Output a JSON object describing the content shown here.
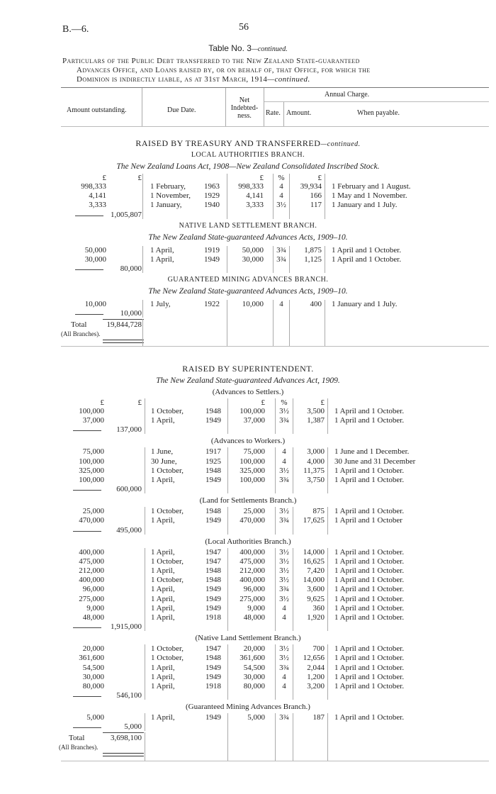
{
  "page": {
    "ref": "B.—6.",
    "number": "56",
    "table_title": "Table No. 3",
    "table_title_suffix": "—continued.",
    "particulars": [
      "Particulars of the Public Debt transferred to the New Zealand State-guaranteed",
      "Advances Office, and Loans raised by, or on behalf of, that Office, for which the",
      "Dominion is indirectly liable, as at 31st March, 1914"
    ],
    "particulars_suffix": "—continued."
  },
  "columns": {
    "amount_outstanding": "Amount outstanding.",
    "due_date": "Due Date.",
    "net_indebtedness": [
      "Net",
      "Indebted-",
      "ness."
    ],
    "annual_charge": "Annual Charge.",
    "rate": "Rate.",
    "amount": "Amount.",
    "when_payable": "When payable."
  },
  "parts": [
    {
      "items": [
        {
          "type": "heading",
          "text": "RAISED BY TREASURY AND TRANSFERRED",
          "suffix": "—continued."
        },
        {
          "type": "branch",
          "text": "LOCAL AUTHORITIES BRANCH."
        },
        {
          "type": "act",
          "text": "The New Zealand Loans Act, 1908—New Zealand Consolidated Inscribed Stock."
        },
        {
          "type": "units",
          "cells": [
            "£",
            "£",
            "",
            "",
            "£",
            "%",
            "£",
            ""
          ]
        },
        {
          "type": "row",
          "cells": [
            "998,333",
            "",
            "1 February,",
            "1963",
            "998,333",
            "4",
            "39,934",
            "1 February and 1 August."
          ]
        },
        {
          "type": "row",
          "cells": [
            "4,141",
            "",
            "1 November,",
            "1929",
            "4,141",
            "4",
            "166",
            "1 May and 1 November."
          ]
        },
        {
          "type": "row",
          "cells": [
            "3,333",
            "",
            "1 January,",
            "1940",
            "3,333",
            "3½",
            "117",
            "1 January and 1 July."
          ]
        },
        {
          "type": "subtotal",
          "value": "1,005,807"
        },
        {
          "type": "branch",
          "text": "NATIVE LAND SETTLEMENT BRANCH."
        },
        {
          "type": "act",
          "text": "The New Zealand State-guaranteed Advances Acts, 1909–10."
        },
        {
          "type": "row",
          "cells": [
            "50,000",
            "",
            "1 April,",
            "1919",
            "50,000",
            "3¾",
            "1,875",
            "1 April and 1 October."
          ]
        },
        {
          "type": "row",
          "cells": [
            "30,000",
            "",
            "1 April,",
            "1949",
            "30,000",
            "3¾",
            "1,125",
            "1 April and 1 October."
          ]
        },
        {
          "type": "subtotal",
          "value": "80,000"
        },
        {
          "type": "branch",
          "text": "GUARANTEED MINING ADVANCES BRANCH."
        },
        {
          "type": "act",
          "text": "The New Zealand State-guaranteed Advances Acts, 1909–10."
        },
        {
          "type": "row",
          "cells": [
            "10,000",
            "",
            "1 July,",
            "1922",
            "10,000",
            "4",
            "400",
            "1 January and 1 July."
          ]
        },
        {
          "type": "subtotal",
          "value": "10,000"
        },
        {
          "type": "total",
          "label": "Total",
          "value": "19,844,728",
          "note": "(All Branches)."
        }
      ]
    },
    {
      "items": [
        {
          "type": "heading",
          "text": "RAISED BY SUPERINTENDENT.",
          "suffix": ""
        },
        {
          "type": "act",
          "text": "The New Zealand State-guaranteed Advances Act, 1909."
        },
        {
          "type": "sub",
          "text": "(Advances to Settlers.)"
        },
        {
          "type": "units",
          "cells": [
            "£",
            "£",
            "",
            "",
            "£",
            "%",
            "£",
            ""
          ]
        },
        {
          "type": "row",
          "cells": [
            "100,000",
            "",
            "1 October,",
            "1948",
            "100,000",
            "3½",
            "3,500",
            "1 April and 1 October."
          ]
        },
        {
          "type": "row",
          "cells": [
            "37,000",
            "",
            "1 April,",
            "1949",
            "37,000",
            "3¾",
            "1,387",
            "1 April and 1 October."
          ]
        },
        {
          "type": "subtotal",
          "value": "137,000"
        },
        {
          "type": "sub",
          "text": "(Advances to Workers.)"
        },
        {
          "type": "row",
          "cells": [
            "75,000",
            "",
            "1 June,",
            "1917",
            "75,000",
            "4",
            "3,000",
            "1 June and 1 December."
          ]
        },
        {
          "type": "row",
          "cells": [
            "100,000",
            "",
            "30 June,",
            "1925",
            "100,000",
            "4",
            "4,000",
            "30 June and 31 December"
          ]
        },
        {
          "type": "row",
          "cells": [
            "325,000",
            "",
            "1 October,",
            "1948",
            "325,000",
            "3½",
            "11,375",
            "1 April and 1 October."
          ]
        },
        {
          "type": "row",
          "cells": [
            "100,000",
            "",
            "1 April,",
            "1949",
            "100,000",
            "3¾",
            "3,750",
            "1 April and 1 October."
          ]
        },
        {
          "type": "subtotal",
          "value": "600,000"
        },
        {
          "type": "sub",
          "text": "(Land for Settlements Branch.)"
        },
        {
          "type": "row",
          "cells": [
            "25,000",
            "",
            "1 October,",
            "1948",
            "25,000",
            "3½",
            "875",
            "1 April and 1 October."
          ]
        },
        {
          "type": "row",
          "cells": [
            "470,000",
            "",
            "1 April,",
            "1949",
            "470,000",
            "3¾",
            "17,625",
            "1 April and 1 October"
          ]
        },
        {
          "type": "subtotal",
          "value": "495,000"
        },
        {
          "type": "sub",
          "text": "(Local Authorities Branch.)"
        },
        {
          "type": "row",
          "cells": [
            "400,000",
            "",
            "1 April,",
            "1947",
            "400,000",
            "3½",
            "14,000",
            "1 April and 1 October."
          ]
        },
        {
          "type": "row",
          "cells": [
            "475,000",
            "",
            "1 October,",
            "1947",
            "475,000",
            "3½",
            "16,625",
            "1 April and 1 October."
          ]
        },
        {
          "type": "row",
          "cells": [
            "212,000",
            "",
            "1 April,",
            "1948",
            "212,000",
            "3½",
            "7,420",
            "1 April and 1 October."
          ]
        },
        {
          "type": "row",
          "cells": [
            "400,000",
            "",
            "1 October,",
            "1948",
            "400,000",
            "3½",
            "14,000",
            "1 April and 1 October."
          ]
        },
        {
          "type": "row",
          "cells": [
            "96,000",
            "",
            "1 April,",
            "1949",
            "96,000",
            "3¾",
            "3,600",
            "1 April and 1 October."
          ]
        },
        {
          "type": "row",
          "cells": [
            "275,000",
            "",
            "1 April,",
            "1949",
            "275,000",
            "3½",
            "9,625",
            "1 April and 1 October."
          ]
        },
        {
          "type": "row",
          "cells": [
            "9,000",
            "",
            "1 April,",
            "1949",
            "9,000",
            "4",
            "360",
            "1 April and 1 October."
          ]
        },
        {
          "type": "row",
          "cells": [
            "48,000",
            "",
            "1 April,",
            "1918",
            "48,000",
            "4",
            "1,920",
            "1 April and 1 October."
          ]
        },
        {
          "type": "subtotal",
          "value": "1,915,000"
        },
        {
          "type": "sub",
          "text": "(Native Land Settlement Branch.)"
        },
        {
          "type": "row",
          "cells": [
            "20,000",
            "",
            "1 October,",
            "1947",
            "20,000",
            "3½",
            "700",
            "1 April and 1 October."
          ]
        },
        {
          "type": "row",
          "cells": [
            "361,600",
            "",
            "1 October,",
            "1948",
            "361,600",
            "3½",
            "12,656",
            "1 April and 1 October."
          ]
        },
        {
          "type": "row",
          "cells": [
            "54,500",
            "",
            "1 April,",
            "1949",
            "54,500",
            "3¾",
            "2,044",
            "1 April and 1 October."
          ]
        },
        {
          "type": "row",
          "cells": [
            "30,000",
            "",
            "1 April,",
            "1949",
            "30,000",
            "4",
            "1,200",
            "1 April and 1 October."
          ]
        },
        {
          "type": "row",
          "cells": [
            "80,000",
            "",
            "1 April,",
            "1918",
            "80,000",
            "4",
            "3,200",
            "1 April and 1 October."
          ]
        },
        {
          "type": "subtotal",
          "value": "546,100"
        },
        {
          "type": "sub",
          "text": "(Guaranteed Mining Advances Branch.)"
        },
        {
          "type": "row",
          "cells": [
            "5,000",
            "",
            "1 April,",
            "1949",
            "5,000",
            "3¾",
            "187",
            "1 April and 1 October."
          ]
        },
        {
          "type": "subtotal",
          "value": "5,000"
        },
        {
          "type": "total",
          "label": "Total",
          "value": "3,698,100",
          "note": "(All Branches)."
        }
      ]
    }
  ]
}
